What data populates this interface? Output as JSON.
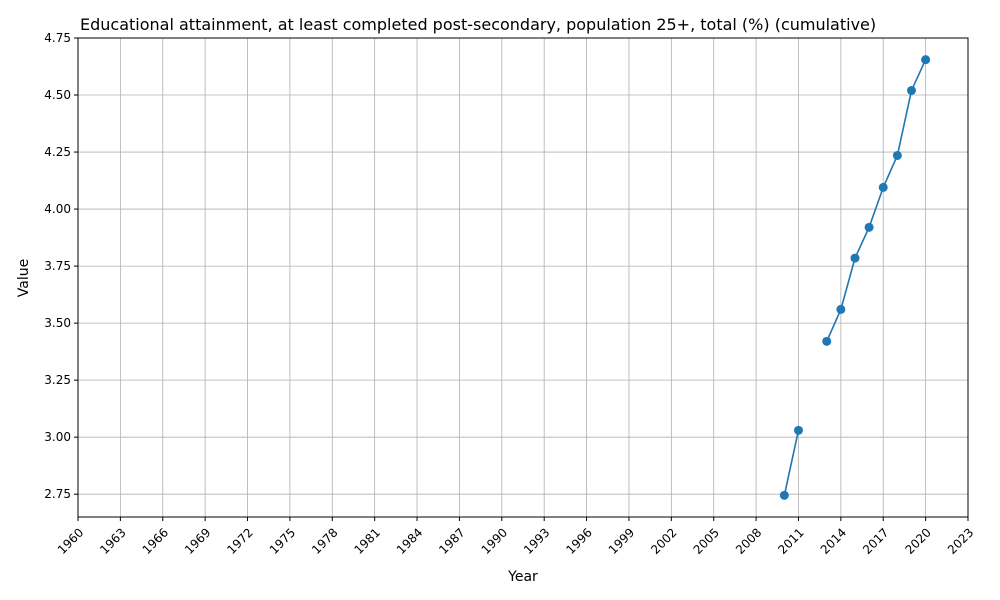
{
  "chart_data": {
    "type": "line",
    "title": "Educational attainment, at least completed post-secondary, population 25+, total (%) (cumulative)",
    "xlabel": "Year",
    "ylabel": "Value",
    "xlim": [
      1960,
      2023
    ],
    "ylim": [
      2.65,
      4.75
    ],
    "x_ticks": [
      1960,
      1963,
      1966,
      1969,
      1972,
      1975,
      1978,
      1981,
      1984,
      1987,
      1990,
      1993,
      1996,
      1999,
      2002,
      2005,
      2008,
      2011,
      2014,
      2017,
      2020,
      2023
    ],
    "y_ticks": [
      "2.75",
      "3.00",
      "3.25",
      "3.50",
      "3.75",
      "4.00",
      "4.25",
      "4.50",
      "4.75"
    ],
    "grid": true,
    "series": [
      {
        "color": "#1f77b4",
        "marker": "circle",
        "segments": [
          [
            {
              "x": 2010,
              "y": 2.745
            },
            {
              "x": 2011,
              "y": 3.03
            }
          ],
          [
            {
              "x": 2013,
              "y": 3.42
            },
            {
              "x": 2014,
              "y": 3.56
            },
            {
              "x": 2015,
              "y": 3.785
            },
            {
              "x": 2016,
              "y": 3.92
            },
            {
              "x": 2017,
              "y": 4.095
            },
            {
              "x": 2018,
              "y": 4.235
            },
            {
              "x": 2019,
              "y": 4.52
            },
            {
              "x": 2020,
              "y": 4.655
            }
          ]
        ]
      }
    ]
  }
}
